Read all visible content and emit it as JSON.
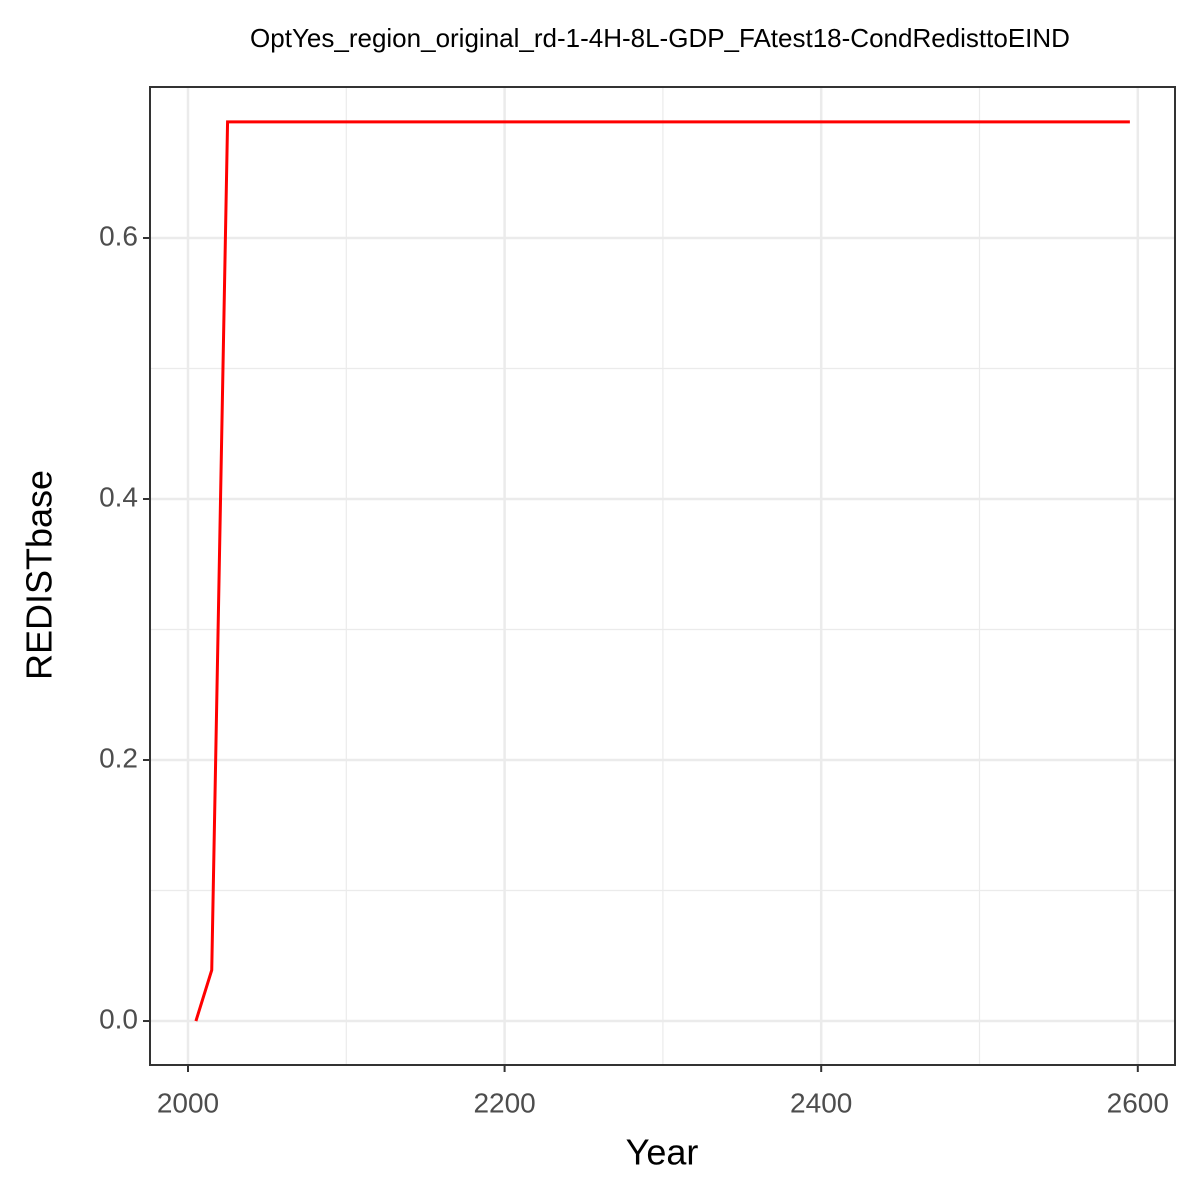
{
  "chart_data": {
    "type": "line",
    "title": "OptYes_region_original_rd-1-4H-8L-GDP_FAtest18-CondRedisttoEIND",
    "x_label": "Year",
    "y_label": "REDISTbase",
    "x": [
      2005,
      2015,
      2025,
      2595
    ],
    "series": [
      {
        "name": "REDISTbase",
        "color": "#ff0000",
        "values": [
          0,
          0.039,
          0.689,
          0.689
        ]
      }
    ],
    "xlim": [
      1976,
      2623.5
    ],
    "ylim": [
      -0.0337,
      0.7157
    ],
    "xticks": [
      2000,
      2200,
      2400,
      2600
    ],
    "yticks": [
      {
        "value": 0,
        "label": "0.0"
      },
      0.2,
      0.4,
      0.6
    ],
    "x_minor_ticks": [
      2100,
      2300,
      2500
    ],
    "y_minor_ticks": [
      0.1,
      0.3,
      0.5
    ],
    "grid": true
  }
}
